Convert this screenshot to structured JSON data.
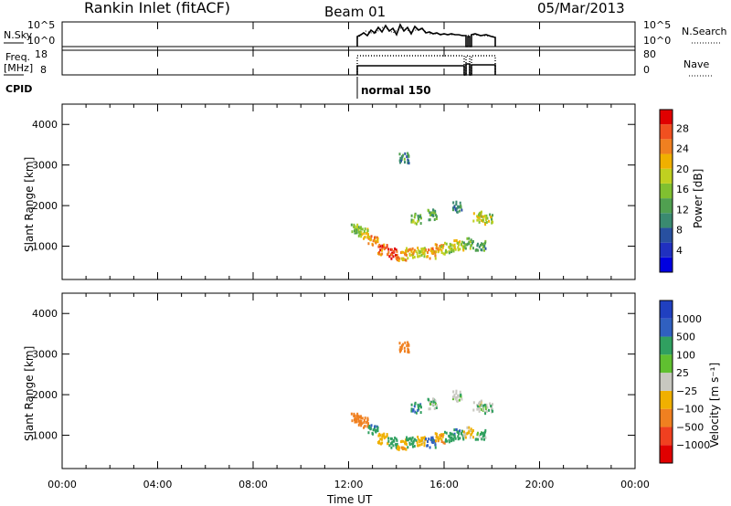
{
  "header": {
    "title": "Rankin Inlet (fitACF)",
    "beam": "Beam 01",
    "date": "05/Mar/2013"
  },
  "top_panels": {
    "nsky_label": "N.Sky",
    "nsky_ticks": [
      "10^5",
      "10^0"
    ],
    "nsearch_label": "N.Search",
    "freq_label_1": "Freq.",
    "freq_label_2": "[MHz]",
    "freq_ticks": [
      "18",
      "8"
    ],
    "nave_ticks": [
      "80",
      "0"
    ],
    "nave_label": "Nave",
    "cpid_label": "CPID",
    "cpid_name": "normal 150"
  },
  "power_panel": {
    "ylabel": "Slant Range [km]",
    "yticks": [
      "4000",
      "3000",
      "2000",
      "1000"
    ],
    "colorbar_label": "Power [dB]",
    "colorbar_ticks": [
      "28",
      "24",
      "20",
      "16",
      "12",
      "8",
      "4"
    ],
    "colors": [
      "#0000e0",
      "#2030c0",
      "#2850a0",
      "#3a8a70",
      "#50a050",
      "#80c030",
      "#c0d020",
      "#f0b000",
      "#f08020",
      "#f05020",
      "#e00000"
    ]
  },
  "velocity_panel": {
    "ylabel": "Slant Range [km]",
    "yticks": [
      "4000",
      "3000",
      "2000",
      "1000"
    ],
    "colorbar_label": "Velocity [m s⁻¹]",
    "colorbar_ticks": [
      "1000",
      "500",
      "100",
      "25",
      "−25",
      "−100",
      "−500",
      "−1000"
    ],
    "colors": [
      "#2040c0",
      "#3060c0",
      "#30a060",
      "#60c030",
      "#c8c8c0",
      "#f0b000",
      "#f08020",
      "#f04020",
      "#e00000"
    ]
  },
  "xaxis": {
    "ticks": [
      "00:00",
      "04:00",
      "08:00",
      "12:00",
      "16:00",
      "20:00",
      "00:00"
    ],
    "label": "Time UT"
  },
  "chart_data": {
    "type": "heatmap",
    "x_range_hours": [
      0,
      24
    ],
    "y_range_km": [
      180,
      4500
    ],
    "observing_window_hours": [
      12,
      18
    ],
    "power_echoes_db": [
      {
        "t": 12.3,
        "r": 1450,
        "v": 14
      },
      {
        "t": 12.6,
        "r": 1350,
        "v": 18
      },
      {
        "t": 13.0,
        "r": 1150,
        "v": 22
      },
      {
        "t": 13.4,
        "r": 950,
        "v": 24
      },
      {
        "t": 13.8,
        "r": 850,
        "v": 26
      },
      {
        "t": 14.2,
        "r": 800,
        "v": 22
      },
      {
        "t": 14.6,
        "r": 850,
        "v": 20
      },
      {
        "t": 15.0,
        "r": 900,
        "v": 18
      },
      {
        "t": 15.4,
        "r": 850,
        "v": 22
      },
      {
        "t": 15.8,
        "r": 950,
        "v": 20
      },
      {
        "t": 16.2,
        "r": 1000,
        "v": 16
      },
      {
        "t": 16.6,
        "r": 1050,
        "v": 18
      },
      {
        "t": 17.0,
        "r": 1100,
        "v": 14
      },
      {
        "t": 17.5,
        "r": 1050,
        "v": 12
      },
      {
        "t": 14.3,
        "r": 3200,
        "v": 10
      },
      {
        "t": 14.8,
        "r": 1700,
        "v": 14
      },
      {
        "t": 15.5,
        "r": 1800,
        "v": 12
      },
      {
        "t": 16.5,
        "r": 2000,
        "v": 10
      },
      {
        "t": 17.4,
        "r": 1750,
        "v": 18
      },
      {
        "t": 17.8,
        "r": 1700,
        "v": 16
      }
    ],
    "velocity_echoes_ms": [
      {
        "t": 12.3,
        "r": 1450,
        "v": -200
      },
      {
        "t": 12.6,
        "r": 1350,
        "v": -150
      },
      {
        "t": 13.0,
        "r": 1150,
        "v": 80
      },
      {
        "t": 13.4,
        "r": 950,
        "v": -60
      },
      {
        "t": 13.8,
        "r": 850,
        "v": 60
      },
      {
        "t": 14.2,
        "r": 800,
        "v": -80
      },
      {
        "t": 14.6,
        "r": 850,
        "v": 70
      },
      {
        "t": 15.0,
        "r": 900,
        "v": -40
      },
      {
        "t": 15.4,
        "r": 850,
        "v": 120
      },
      {
        "t": 15.8,
        "r": 950,
        "v": -90
      },
      {
        "t": 16.2,
        "r": 1000,
        "v": 60
      },
      {
        "t": 16.6,
        "r": 1050,
        "v": 80
      },
      {
        "t": 17.0,
        "r": 1100,
        "v": -30
      },
      {
        "t": 17.5,
        "r": 1050,
        "v": 40
      },
      {
        "t": 14.3,
        "r": 3200,
        "v": -300
      },
      {
        "t": 14.8,
        "r": 1700,
        "v": 90
      },
      {
        "t": 15.5,
        "r": 1800,
        "v": 10
      },
      {
        "t": 16.5,
        "r": 2000,
        "v": 5
      },
      {
        "t": 17.4,
        "r": 1750,
        "v": 0
      },
      {
        "t": 17.8,
        "r": 1700,
        "v": 10
      }
    ]
  }
}
